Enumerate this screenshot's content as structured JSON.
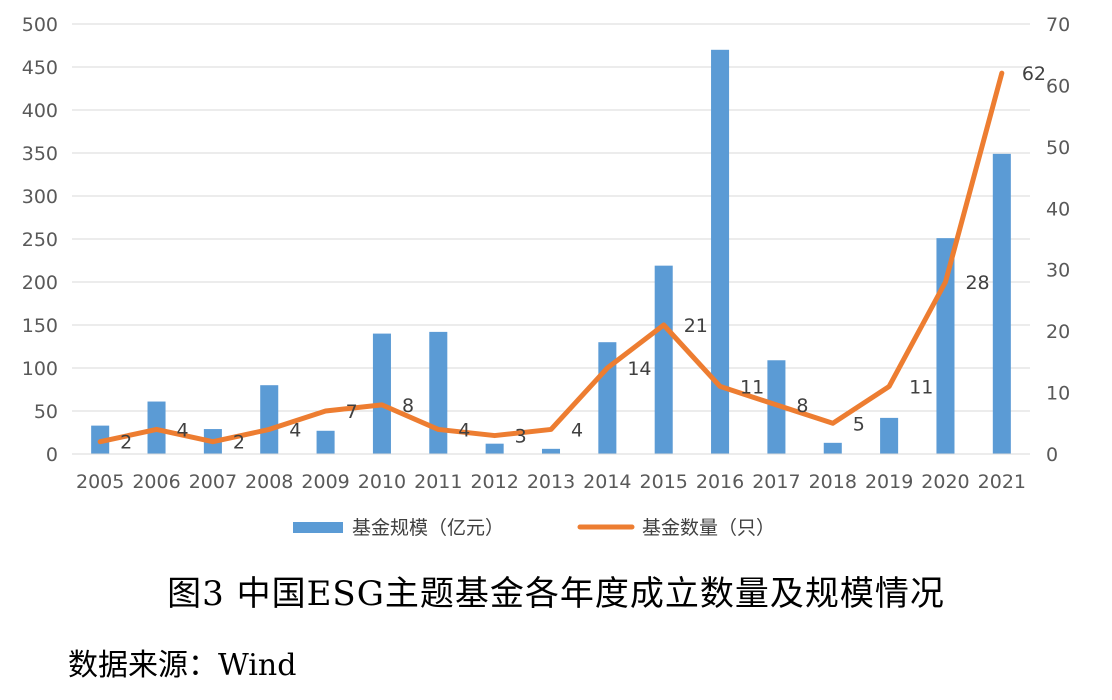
{
  "figure": {
    "caption": "图3 中国ESG主题基金各年度成立数量及规模情况",
    "source": "数据来源：Wind"
  },
  "chart_data": {
    "type": "bar",
    "categories": [
      "2005",
      "2006",
      "2007",
      "2008",
      "2009",
      "2010",
      "2011",
      "2012",
      "2013",
      "2014",
      "2015",
      "2016",
      "2017",
      "2018",
      "2019",
      "2020",
      "2021"
    ],
    "series": [
      {
        "name": "基金规模（亿元）",
        "type": "bar",
        "axis": "left",
        "color": "#5B9BD5",
        "values": [
          33,
          61,
          29,
          80,
          27,
          140,
          142,
          12,
          6,
          130,
          219,
          470,
          109,
          13,
          42,
          251,
          349
        ]
      },
      {
        "name": "基金数量（只）",
        "type": "line",
        "axis": "right",
        "color": "#ED7D31",
        "values": [
          2,
          4,
          2,
          4,
          7,
          8,
          4,
          3,
          4,
          14,
          21,
          11,
          8,
          5,
          11,
          28,
          62
        ],
        "labels": [
          "2",
          "4",
          "2",
          "4",
          "7",
          "8",
          "4",
          "3",
          "4",
          "14",
          "21",
          "11",
          "8",
          "5",
          "11",
          "28",
          "62"
        ]
      }
    ],
    "y_left": {
      "min": 0,
      "max": 500,
      "ticks": [
        "0",
        "50",
        "100",
        "150",
        "200",
        "250",
        "300",
        "350",
        "400",
        "450",
        "500"
      ]
    },
    "y_right": {
      "min": 0,
      "max": 70,
      "ticks": [
        "0",
        "10",
        "20",
        "30",
        "40",
        "50",
        "60",
        "70"
      ]
    },
    "grid": true,
    "legend": "bottom"
  }
}
